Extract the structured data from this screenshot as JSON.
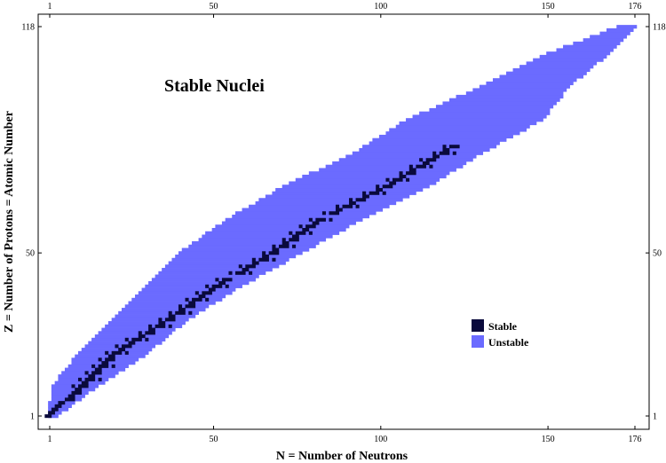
{
  "chart_data": {
    "type": "heatmap",
    "title": "Stable Nuclei",
    "xlabel": "N = Number of Neutrons",
    "ylabel": "Z = Number of Protons = Atomic Number",
    "xlim": [
      1,
      176
    ],
    "ylim": [
      1,
      118
    ],
    "x_ticks": [
      1,
      50,
      100,
      150,
      176
    ],
    "y_ticks": [
      1,
      50,
      118
    ],
    "grid": false,
    "legend_position": "lower-right",
    "colors": {
      "stable": "#0a0a3c",
      "unstable": "#6b6bff"
    },
    "series": [
      {
        "name": "Stable",
        "z_range": [
          1,
          82
        ],
        "n_center": [
          [
            1,
            1
          ],
          [
            10,
            11
          ],
          [
            20,
            21
          ],
          [
            30,
            37
          ],
          [
            40,
            51
          ],
          [
            50,
            68
          ],
          [
            60,
            82
          ],
          [
            70,
            102
          ],
          [
            82,
            122
          ]
        ]
      },
      {
        "name": "Unstable",
        "z_range": [
          1,
          118
        ],
        "n_min": [
          [
            1,
            1
          ],
          [
            10,
            2
          ],
          [
            20,
            10
          ],
          [
            30,
            20
          ],
          [
            40,
            30
          ],
          [
            50,
            40
          ],
          [
            60,
            54
          ],
          [
            70,
            71
          ],
          [
            80,
            92
          ],
          [
            90,
            108
          ],
          [
            100,
            130
          ],
          [
            110,
            150
          ],
          [
            118,
            171
          ]
        ],
        "n_max": [
          [
            1,
            3
          ],
          [
            10,
            15
          ],
          [
            20,
            30
          ],
          [
            30,
            42
          ],
          [
            40,
            58
          ],
          [
            50,
            76
          ],
          [
            60,
            94
          ],
          [
            70,
            114
          ],
          [
            80,
            130
          ],
          [
            90,
            148
          ],
          [
            100,
            156
          ],
          [
            110,
            168
          ],
          [
            118,
            176
          ]
        ]
      }
    ]
  }
}
